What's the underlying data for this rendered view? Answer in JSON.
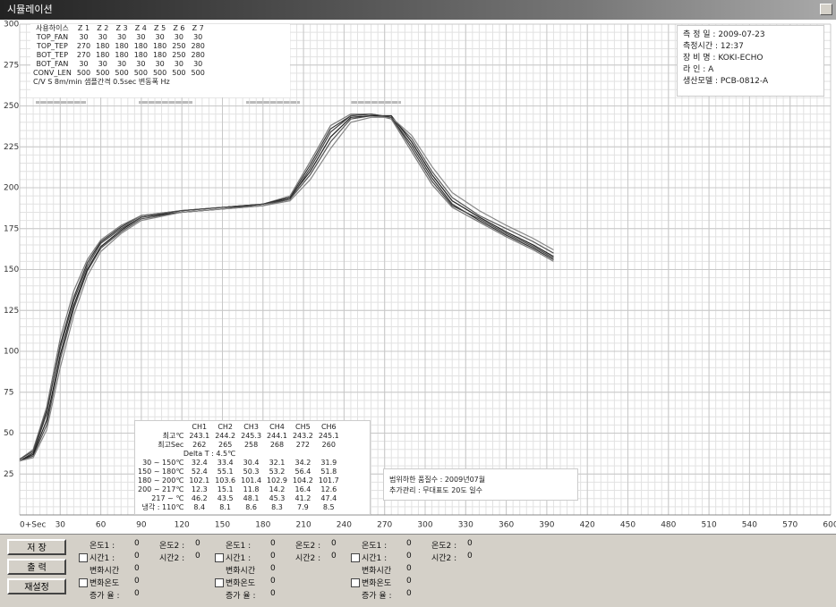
{
  "window_title": "시뮬레이션",
  "chart_data": {
    "type": "line",
    "x": [
      0,
      10,
      20,
      30,
      40,
      50,
      60,
      75,
      90,
      120,
      150,
      180,
      200,
      215,
      230,
      245,
      260,
      275,
      290,
      305,
      320,
      340,
      360,
      380,
      395
    ],
    "series": [
      {
        "name": "CH1",
        "color": "#333333",
        "values": [
          33,
          38,
          62,
          104,
          133,
          154,
          167,
          176,
          183,
          186,
          188,
          190,
          194,
          214,
          236,
          244,
          245,
          243,
          226,
          206,
          190,
          180,
          171,
          163,
          156
        ]
      },
      {
        "name": "CH2",
        "color": "#555555",
        "values": [
          33,
          36,
          55,
          95,
          126,
          149,
          163,
          173,
          181,
          185,
          187,
          189,
          193,
          208,
          228,
          242,
          244,
          243,
          230,
          210,
          194,
          183,
          175,
          167,
          160
        ]
      },
      {
        "name": "CH3",
        "color": "#777777",
        "values": [
          34,
          40,
          66,
          108,
          137,
          156,
          168,
          177,
          183,
          186,
          188,
          190,
          195,
          216,
          238,
          245,
          245,
          242,
          222,
          202,
          188,
          179,
          170,
          162,
          155
        ]
      },
      {
        "name": "CH4",
        "color": "#222222",
        "values": [
          33,
          37,
          58,
          98,
          128,
          150,
          164,
          174,
          182,
          185,
          187,
          190,
          194,
          210,
          231,
          243,
          244,
          244,
          228,
          208,
          192,
          182,
          173,
          165,
          158
        ]
      },
      {
        "name": "CH5",
        "color": "#888888",
        "values": [
          33,
          35,
          52,
          90,
          122,
          146,
          161,
          172,
          180,
          185,
          187,
          189,
          192,
          205,
          224,
          240,
          243,
          243,
          232,
          213,
          197,
          186,
          177,
          169,
          162
        ]
      },
      {
        "name": "CH6",
        "color": "#444444",
        "values": [
          34,
          39,
          64,
          102,
          131,
          152,
          166,
          175,
          182,
          186,
          188,
          190,
          193,
          212,
          234,
          244,
          245,
          243,
          224,
          204,
          189,
          181,
          172,
          164,
          157
        ]
      }
    ],
    "xlim": [
      0,
      600
    ],
    "xticks": [
      {
        "value": 0,
        "label": "0+Sec"
      },
      30,
      60,
      90,
      120,
      150,
      180,
      210,
      240,
      270,
      300,
      330,
      360,
      390,
      420,
      450,
      480,
      510,
      540,
      570,
      600
    ],
    "ylim": [
      0,
      300
    ],
    "yticks": [
      25,
      50,
      75,
      100,
      125,
      150,
      175,
      200,
      225,
      250,
      275,
      300
    ],
    "grid": true
  },
  "settings_table": {
    "rows": [
      [
        "사용하이스",
        "Z 1",
        "Z 2",
        "Z 3",
        "Z 4",
        "Z 5",
        "Z 6",
        "Z 7"
      ],
      [
        "TOP_FAN",
        30,
        30,
        30,
        30,
        30,
        30,
        30
      ],
      [
        "TOP_TEP",
        270,
        180,
        180,
        180,
        180,
        250,
        280
      ],
      [
        "BOT_TEP",
        270,
        180,
        180,
        180,
        180,
        250,
        280
      ],
      [
        "BOT_FAN",
        30,
        30,
        30,
        30,
        30,
        30,
        30
      ],
      [
        "CONV_LEN",
        500,
        500,
        500,
        500,
        500,
        500,
        500
      ]
    ],
    "footer": "C/V S 8m/min  샘플간격 0.5sec  변동폭 Hz"
  },
  "info_box": [
    "측 정 일 : 2009-07-23",
    "측정시간 : 12:37",
    "장 비 명 : KOKI-ECHO",
    "라    인 : A",
    "생산모델 : PCB-0812-A"
  ],
  "measure_table": {
    "rows": [
      [
        "최고℃",
        243.1,
        244.2,
        245.3,
        244.1,
        243.2,
        245.1
      ],
      [
        "최고Sec",
        262,
        265,
        258,
        268,
        272,
        260
      ],
      [
        "Delta T : 4.5℃"
      ],
      [
        "30 ~ 150℃",
        32.4,
        33.4,
        30.4,
        32.1,
        34.2,
        31.9
      ],
      [
        "150 ~ 180℃",
        52.4,
        55.1,
        50.3,
        53.2,
        56.4,
        51.8
      ],
      [
        "180 ~ 200℃",
        102.1,
        103.6,
        101.4,
        102.9,
        104.2,
        101.7
      ],
      [
        "200 ~ 217℃",
        12.3,
        15.1,
        11.8,
        14.2,
        16.4,
        12.6
      ],
      [
        "217 ~ ℃",
        46.2,
        43.5,
        48.1,
        45.3,
        41.2,
        47.4
      ],
      [
        "냉각 : 110℃",
        8.4,
        8.1,
        8.6,
        8.3,
        7.9,
        8.5
      ]
    ]
  },
  "note_box": [
    "범위하한 품질수 : 2009년07월",
    "추가관리 : 무대표도 20도 일수"
  ],
  "buttons": [
    "저  장",
    "출  력",
    "재설정"
  ],
  "panel_groups": [
    [
      [
        "온도1 :",
        0,
        "온도2 :",
        0
      ],
      [
        "시간1 :",
        0,
        "시간2 :",
        0
      ],
      [
        "변화시간",
        0
      ],
      [
        "변화온도",
        0
      ],
      [
        "증가 율 :",
        0
      ]
    ],
    [
      [
        "온도1 :",
        0,
        "온도2 :",
        0
      ],
      [
        "시간1 :",
        0,
        "시간2 :",
        0
      ],
      [
        "변화시간",
        0
      ],
      [
        "변화온도",
        0
      ],
      [
        "증가 율 :",
        0
      ]
    ],
    [
      [
        "온도1 :",
        0,
        "온도2 :",
        0
      ],
      [
        "시간1 :",
        0,
        "시간2 :",
        0
      ],
      [
        "변화시간",
        0
      ],
      [
        "변화온도",
        0
      ],
      [
        "증가 율 :",
        0
      ]
    ]
  ]
}
